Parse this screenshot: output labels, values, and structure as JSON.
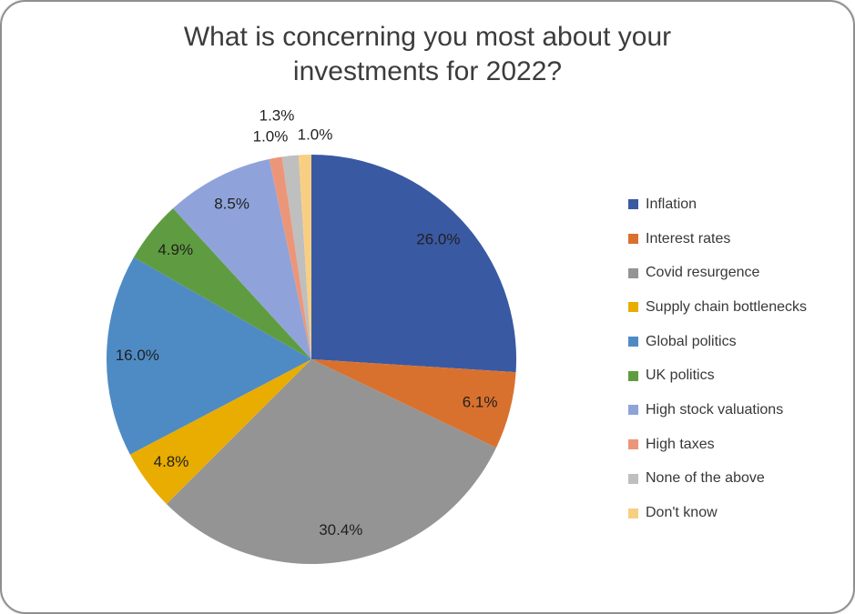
{
  "chart_data": {
    "type": "pie",
    "title": "What is concerning you most about your investments for 2022?",
    "legend_position": "right",
    "total": 100.0,
    "slices": [
      {
        "label": "Inflation",
        "value": 26.0,
        "display": "26.0%",
        "color": "#3a59a3"
      },
      {
        "label": "Interest rates",
        "value": 6.1,
        "display": "6.1%",
        "color": "#d9712e"
      },
      {
        "label": "Covid resurgence",
        "value": 30.4,
        "display": "30.4%",
        "color": "#949494"
      },
      {
        "label": "Supply chain bottlenecks",
        "value": 4.8,
        "display": "4.8%",
        "color": "#e8ad00"
      },
      {
        "label": "Global politics",
        "value": 16.0,
        "display": "16.0%",
        "color": "#4e8bc4"
      },
      {
        "label": "UK politics",
        "value": 4.9,
        "display": "4.9%",
        "color": "#5f9c41"
      },
      {
        "label": "High stock valuations",
        "value": 8.5,
        "display": "8.5%",
        "color": "#8fa3da"
      },
      {
        "label": "High taxes",
        "value": 1.0,
        "display": "1.0%",
        "color": "#ec9679"
      },
      {
        "label": "None of the above",
        "value": 1.3,
        "display": "1.3%",
        "color": "#bfbfbf"
      },
      {
        "label": "Don't know",
        "value": 1.0,
        "display": "1.0%",
        "color": "#f8cf82"
      }
    ]
  }
}
